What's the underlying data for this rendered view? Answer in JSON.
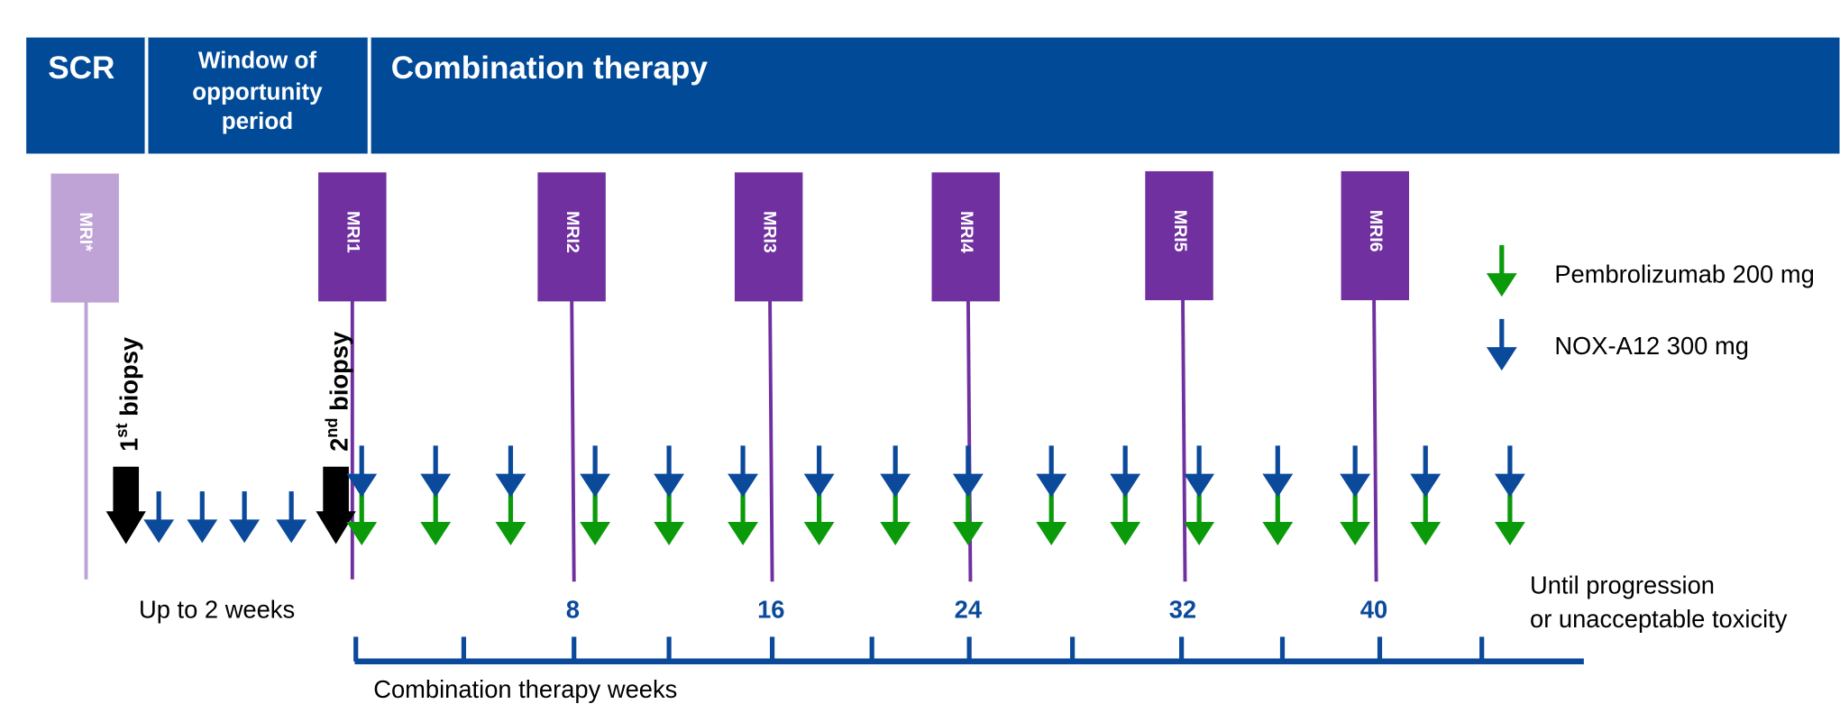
{
  "header": {
    "scr": "SCR",
    "window_lines": [
      "Window of",
      "opportunity",
      "period"
    ],
    "combination": "Combination therapy"
  },
  "mri": [
    "MRI*",
    "MRI1",
    "MRI2",
    "MRI3",
    "MRI4",
    "MRI5",
    "MRI6"
  ],
  "biopsies": [
    {
      "number": "1",
      "suffix": "st",
      "text": " biopsy"
    },
    {
      "number": "2",
      "suffix": "nd",
      "text": " biopsy"
    }
  ],
  "legend": [
    {
      "label": "Pembrolizumab  200 mg"
    },
    {
      "label": "NOX-A12 300 mg"
    }
  ],
  "timeline": {
    "pre_label": "Up to 2 weeks",
    "weeks": [
      "8",
      "16",
      "24",
      "32",
      "40"
    ],
    "end_lines": [
      "Until progression",
      "or unacceptable toxicity"
    ],
    "axis_label": "Combination therapy weeks"
  }
}
